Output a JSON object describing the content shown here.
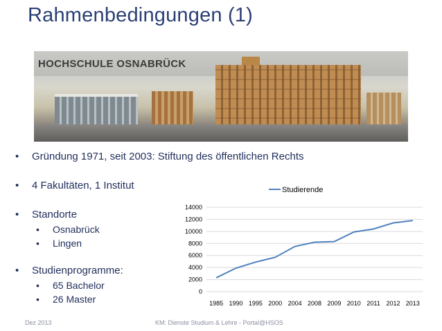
{
  "slide": {
    "title": "Rahmenbedingungen (1)",
    "banner_title": "HOCHSCHULE OSNABRÜCK"
  },
  "bullets": [
    {
      "text": "Gründung 1971, seit 2003: Stiftung des öffentlichen Rechts",
      "sub": []
    },
    {
      "text": "4 Fakultäten, 1 Institut",
      "sub": []
    },
    {
      "text": "Standorte",
      "sub": [
        "Osnabrück",
        "Lingen"
      ]
    },
    {
      "text": "Studienprogramme:",
      "sub": [
        "65 Bachelor",
        "26 Master"
      ]
    }
  ],
  "bullet_glyph": "•",
  "footer": {
    "date": "Dez 2013",
    "center": "KM: Dienste Studium & Lehre - Portal@HSOS"
  },
  "colors": {
    "line": "#4f81bd",
    "grid": "#d9d9d9",
    "title": "#2a3f74",
    "text": "#1f2d5a"
  },
  "chart_data": {
    "type": "line",
    "categories": [
      "1985",
      "1990",
      "1995",
      "2000",
      "2004",
      "2008",
      "2009",
      "2010",
      "2011",
      "2012",
      "2013"
    ],
    "series": [
      {
        "name": "Studierende",
        "values": [
          2300,
          3900,
          4900,
          5700,
          7500,
          8200,
          8300,
          9900,
          10400,
          11400,
          11800
        ]
      }
    ],
    "ylim": [
      0,
      14000
    ],
    "yticks": [
      "0",
      "2000",
      "4000",
      "6000",
      "8000",
      "10000",
      "12000",
      "14000"
    ],
    "grid": true,
    "legend": "top"
  }
}
